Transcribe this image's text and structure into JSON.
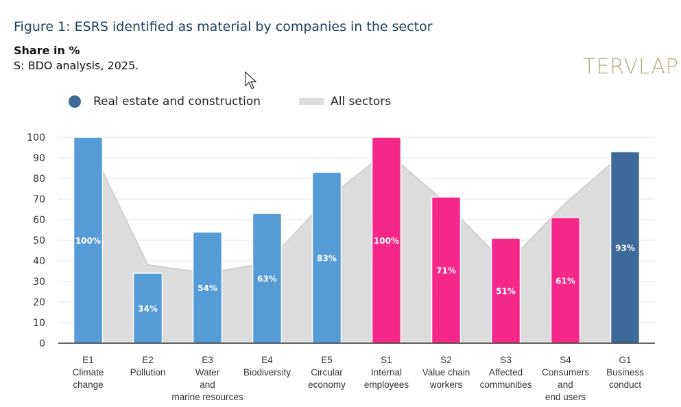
{
  "header": {
    "title": "Figure 1: ESRS identified as material by companies in the sector",
    "subtitle": "Share in %",
    "source": "S: BDO analysis, 2025."
  },
  "watermark": "TERVLAP",
  "chart_data": {
    "type": "bar",
    "categories": [
      [
        "E1",
        "Climate",
        "change"
      ],
      [
        "E2",
        "Pollution"
      ],
      [
        "E3",
        "Water",
        "and",
        "marine resources"
      ],
      [
        "E4",
        "Biodiversity"
      ],
      [
        "E5",
        "Circular",
        "economy"
      ],
      [
        "S1",
        "Internal",
        "employees"
      ],
      [
        "S2",
        "Value chain",
        "workers"
      ],
      [
        "S3",
        "Affected",
        "communities"
      ],
      [
        "S4",
        "Consumers",
        "and",
        "end users"
      ],
      [
        "G1",
        "Business",
        "conduct"
      ]
    ],
    "series": [
      {
        "name": "Real estate and construction",
        "type": "bar",
        "values": [
          100,
          34,
          54,
          63,
          83,
          100,
          71,
          51,
          61,
          93
        ],
        "labels": [
          "100%",
          "34%",
          "54%",
          "63%",
          "83%",
          "100%",
          "71%",
          "51%",
          "61%",
          "93%"
        ],
        "colors": [
          "#559bd6",
          "#559bd6",
          "#559bd6",
          "#559bd6",
          "#559bd6",
          "#f5288a",
          "#f5288a",
          "#f5288a",
          "#f5288a",
          "#3e6a9a"
        ]
      },
      {
        "name": "All sectors",
        "type": "area",
        "values": [
          98,
          38,
          34,
          39,
          70,
          93,
          68,
          38,
          68,
          93
        ],
        "color": "#dcdcdc"
      }
    ],
    "legend_dot_color": "#3e6a9a",
    "ylim": [
      0,
      100
    ],
    "yticks": [
      "0",
      "10",
      "20",
      "30",
      "40",
      "50",
      "60",
      "70",
      "80",
      "90",
      "100"
    ],
    "grid": true,
    "legend": "top"
  }
}
